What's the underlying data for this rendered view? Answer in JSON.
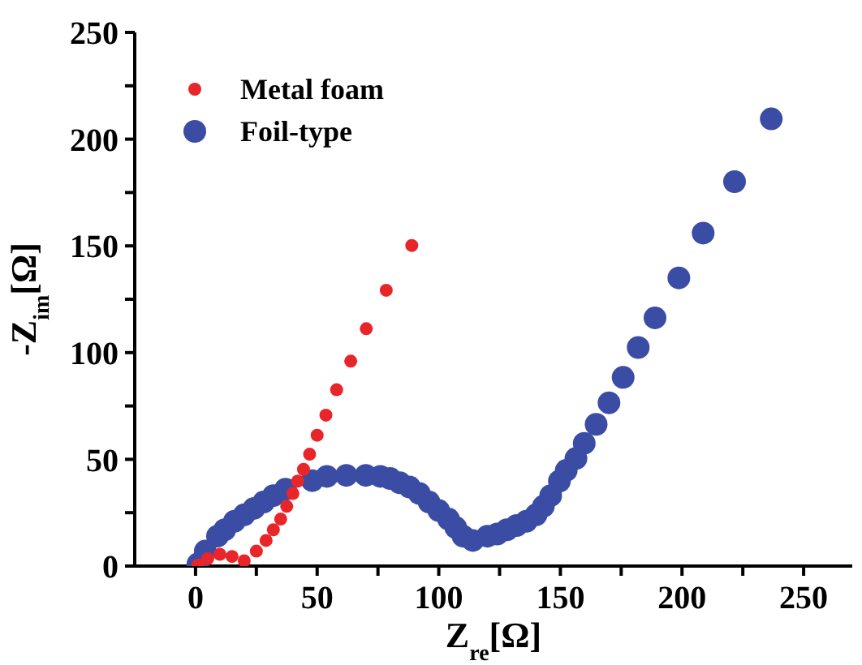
{
  "chart_data": {
    "type": "scatter",
    "xlabel": "Z$_{re}$[Ω]",
    "ylabel": "-Z$_{im}$[Ω]",
    "xlim": [
      -25,
      270
    ],
    "ylim": [
      0,
      250
    ],
    "xticks": [
      0,
      {
        "value": 25,
        "label": null
      },
      50,
      {
        "value": 75,
        "label": null
      },
      100,
      {
        "value": 125,
        "label": null
      },
      150,
      {
        "value": 175,
        "label": null
      },
      200,
      {
        "value": 225,
        "label": null
      },
      250
    ],
    "yticks": [
      0,
      {
        "value": 25,
        "label": null
      },
      50,
      {
        "value": 75,
        "label": null
      },
      100,
      {
        "value": 125,
        "label": null
      },
      150,
      {
        "value": 175,
        "label": null
      },
      200,
      {
        "value": 225,
        "label": null
      },
      250
    ],
    "legend": "top left",
    "marker": "circle",
    "grid": false,
    "series": [
      {
        "name": "Metal foam",
        "color": "#e8262a",
        "x": [
          1,
          5,
          10,
          15,
          20,
          25,
          29,
          32,
          35,
          37.5,
          40,
          42,
          44.4,
          46.9,
          50,
          53.6,
          58,
          63.8,
          70.2,
          78.4,
          88.9
        ],
        "values": [
          0.5,
          3.5,
          5.5,
          4.5,
          2.5,
          7,
          12,
          17,
          22,
          28,
          34,
          39.8,
          45.3,
          52.4,
          61.3,
          70.7,
          82.6,
          96,
          111.2,
          129.2,
          150.2
        ]
      },
      {
        "name": "Foil-type",
        "color": "#3a4ca4",
        "x": [
          1,
          4,
          9,
          12,
          16,
          20,
          24,
          28,
          32,
          37,
          48,
          54,
          62,
          70,
          76,
          80,
          84,
          88,
          92,
          96,
          100,
          104,
          107,
          110,
          114,
          120,
          124,
          128,
          132,
          136,
          140,
          143,
          146,
          149.6,
          152.4,
          156.4,
          159.8,
          164.7,
          170,
          175.8,
          182,
          188.9,
          198.7,
          208.7,
          221.6,
          236.7
        ],
        "values": [
          1,
          7,
          14,
          17,
          21,
          24,
          27,
          30,
          33,
          36,
          40,
          42,
          42.5,
          42.5,
          42,
          41,
          39,
          37,
          34,
          30,
          26,
          22,
          18,
          14,
          12,
          14,
          15,
          17,
          19,
          21,
          24,
          28,
          33,
          39.8,
          44.8,
          50.4,
          57.5,
          66.4,
          76.5,
          88.4,
          102.4,
          116.3,
          135,
          156,
          180.1,
          209.5
        ]
      }
    ]
  }
}
